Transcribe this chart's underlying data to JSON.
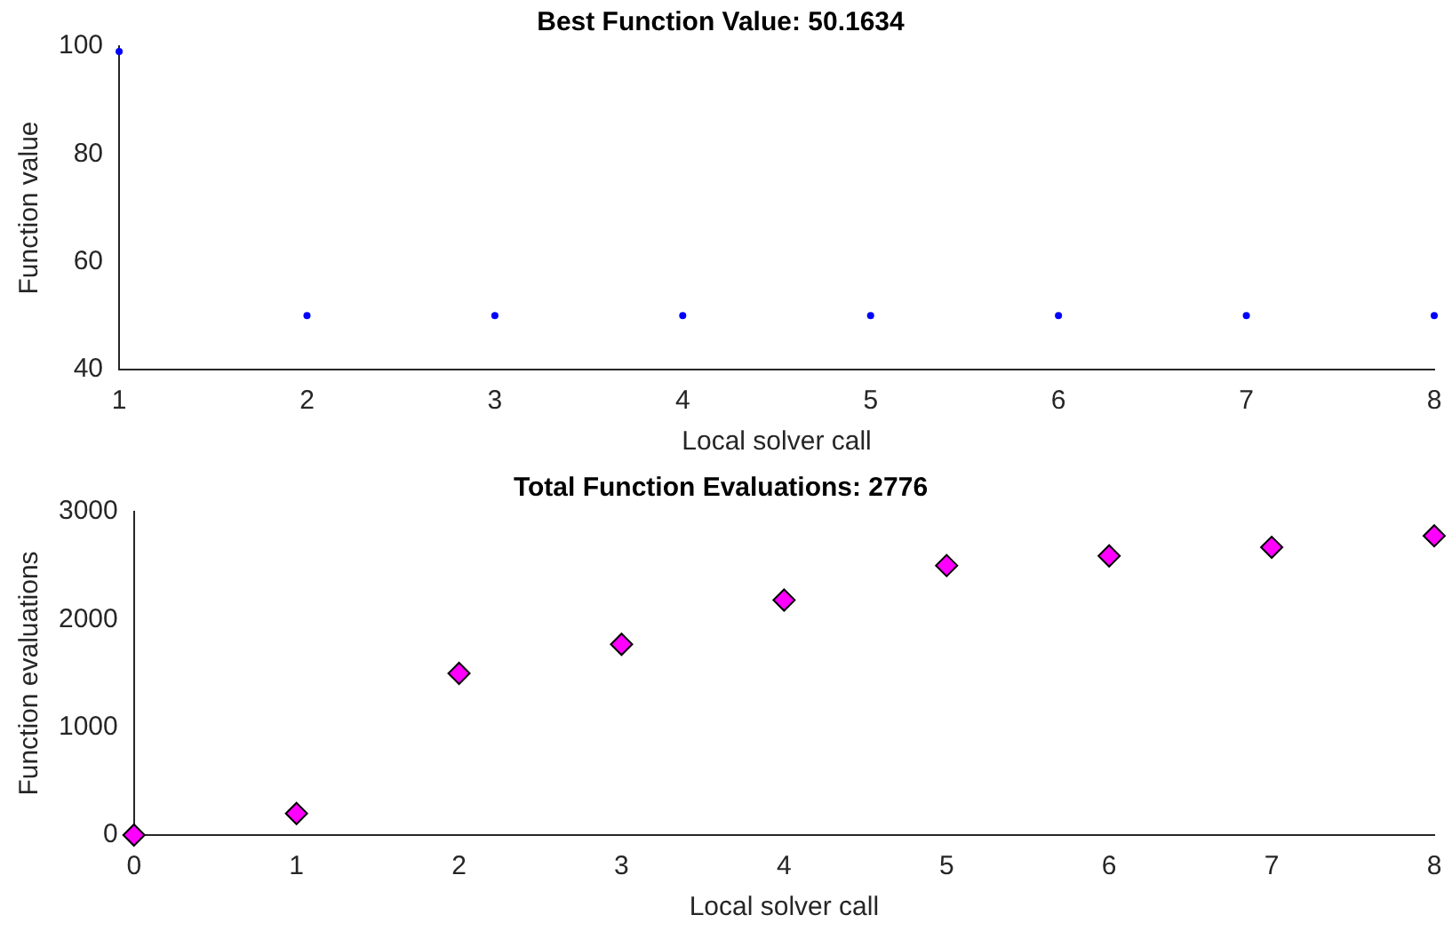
{
  "chart_data": [
    {
      "type": "scatter",
      "title": "Best Function Value: 50.1634",
      "xlabel": "Local solver call",
      "ylabel": "Function value",
      "x": [
        1,
        2,
        3,
        4,
        5,
        6,
        7,
        8
      ],
      "series": [
        {
          "color": "#0000ff",
          "values": [
            99,
            50,
            50,
            50,
            50,
            50,
            50,
            50
          ]
        }
      ],
      "xlim": [
        1,
        8
      ],
      "xticks": [
        1,
        2,
        3,
        4,
        5,
        6,
        7,
        8
      ],
      "ylim": [
        40,
        100
      ],
      "yticks": [
        40,
        60,
        80,
        100
      ],
      "marker": "circle",
      "grid": false,
      "legend": false
    },
    {
      "type": "scatter",
      "title": "Total Function Evaluations: 2776",
      "xlabel": "Local solver call",
      "ylabel": "Function evaluations",
      "x": [
        0,
        1,
        2,
        3,
        4,
        5,
        6,
        7,
        8
      ],
      "series": [
        {
          "color": "#ff00ff",
          "values": [
            0,
            200,
            1500,
            1770,
            2180,
            2500,
            2590,
            2670,
            2776
          ]
        }
      ],
      "xlim": [
        0,
        8
      ],
      "xticks": [
        0,
        1,
        2,
        3,
        4,
        5,
        6,
        7,
        8
      ],
      "ylim": [
        0,
        3000
      ],
      "yticks": [
        0,
        1000,
        2000,
        3000
      ],
      "marker": "diamond",
      "grid": false,
      "legend": false
    }
  ]
}
